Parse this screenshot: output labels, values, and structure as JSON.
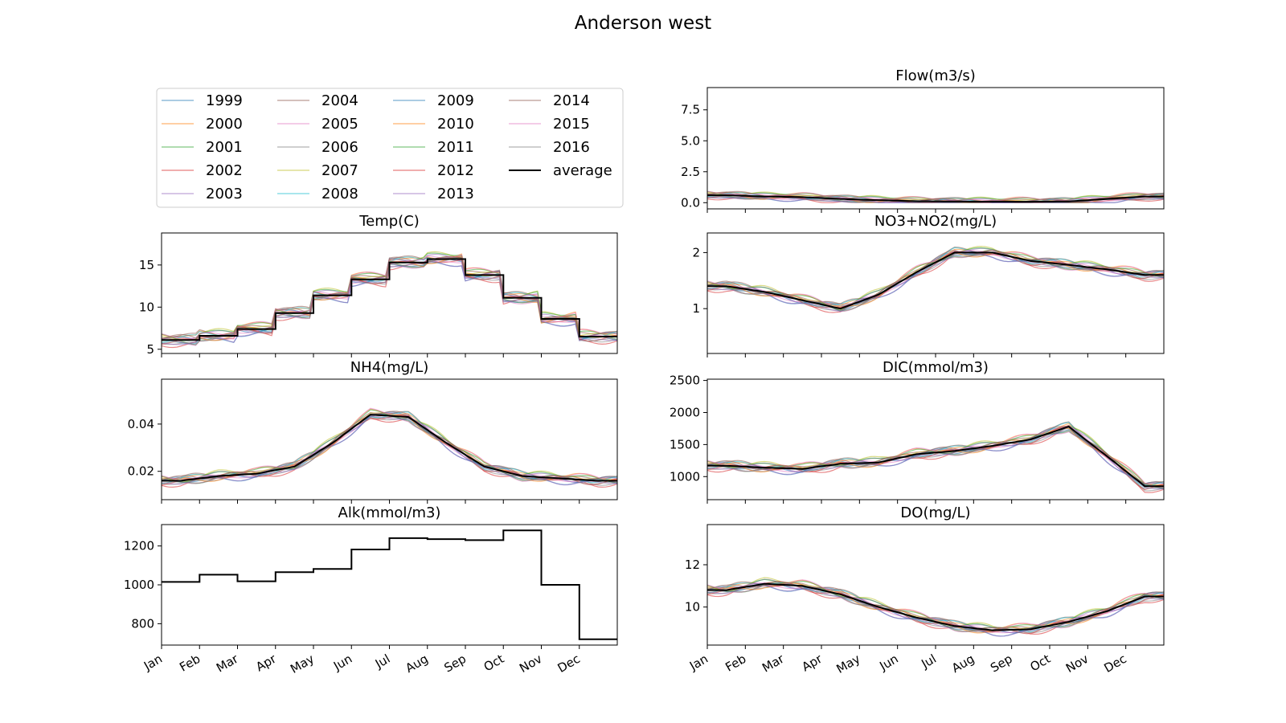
{
  "figure": {
    "title": "Anderson west",
    "legend": {
      "placement": "top-left",
      "entries": [
        "1999",
        "2000",
        "2001",
        "2002",
        "2003",
        "2004",
        "2005",
        "2006",
        "2007",
        "2008",
        "2009",
        "2010",
        "2011",
        "2012",
        "2013",
        "2014",
        "2015",
        "2016",
        "average"
      ]
    },
    "colors": {
      "series": [
        "#1f77b4",
        "#ff7f0e",
        "#2ca02c",
        "#d62728",
        "#9467bd",
        "#8c564b",
        "#e377c2",
        "#7f7f7f",
        "#bcbd22",
        "#17becf"
      ],
      "average": "#000000"
    }
  },
  "chart_data": [
    {
      "type": "line",
      "title": "Temp(C)",
      "categories": [
        "Jan",
        "Feb",
        "Mar",
        "Apr",
        "May",
        "Jun",
        "Jul",
        "Aug",
        "Sep",
        "Oct",
        "Nov",
        "Dec"
      ],
      "yticks": [
        5,
        10,
        15
      ],
      "ylim": [
        4.5,
        18.8
      ],
      "show_xticklabels": false,
      "average": [
        6.1,
        6.6,
        7.4,
        9.3,
        11.4,
        13.3,
        15.3,
        15.7,
        13.8,
        11.1,
        8.6,
        6.5
      ]
    },
    {
      "type": "line",
      "title": "NH4(mg/L)",
      "categories": [
        "Jan",
        "Feb",
        "Mar",
        "Apr",
        "May",
        "Jun",
        "Jul",
        "Aug",
        "Sep",
        "Oct",
        "Nov",
        "Dec"
      ],
      "yticks": [
        0.02,
        0.04
      ],
      "ylim": [
        0.008,
        0.059
      ],
      "show_xticklabels": false,
      "average": [
        0.016,
        0.018,
        0.019,
        0.022,
        0.032,
        0.044,
        0.043,
        0.032,
        0.022,
        0.018,
        0.017,
        0.016
      ]
    },
    {
      "type": "line",
      "title": "Alk(mmol/m3)",
      "categories": [
        "Jan",
        "Feb",
        "Mar",
        "Apr",
        "May",
        "Jun",
        "Jul",
        "Aug",
        "Sep",
        "Oct",
        "Nov",
        "Dec"
      ],
      "yticks": [
        800,
        1000,
        1200
      ],
      "ylim": [
        690,
        1310
      ],
      "show_xticklabels": true,
      "average": [
        1015,
        1052,
        1018,
        1065,
        1082,
        1182,
        1240,
        1235,
        1230,
        1280,
        1000,
        720
      ]
    },
    {
      "type": "line",
      "title": "Flow(m3/s)",
      "categories": [
        "Jan",
        "Feb",
        "Mar",
        "Apr",
        "May",
        "Jun",
        "Jul",
        "Aug",
        "Sep",
        "Oct",
        "Nov",
        "Dec"
      ],
      "yticks": [
        0.0,
        2.5,
        5.0,
        7.5
      ],
      "ytick_labels": [
        "0.0",
        "2.5",
        "5.0",
        "7.5"
      ],
      "ylim": [
        -0.5,
        9.3
      ],
      "show_xticklabels": false,
      "average": [
        0.6,
        0.5,
        0.45,
        0.3,
        0.2,
        0.12,
        0.1,
        0.08,
        0.08,
        0.1,
        0.3,
        0.5
      ]
    },
    {
      "type": "line",
      "title": "NO3+NO2(mg/L)",
      "categories": [
        "Jan",
        "Feb",
        "Mar",
        "Apr",
        "May",
        "Jun",
        "Jul",
        "Aug",
        "Sep",
        "Oct",
        "Nov",
        "Dec"
      ],
      "yticks": [
        1,
        2
      ],
      "ylim": [
        0.2,
        2.35
      ],
      "show_xticklabels": false,
      "average": [
        1.4,
        1.3,
        1.15,
        1.0,
        1.25,
        1.65,
        2.0,
        2.0,
        1.85,
        1.78,
        1.7,
        1.6
      ]
    },
    {
      "type": "line",
      "title": "DIC(mmol/m3)",
      "categories": [
        "Jan",
        "Feb",
        "Mar",
        "Apr",
        "May",
        "Jun",
        "Jul",
        "Aug",
        "Sep",
        "Oct",
        "Nov",
        "Dec"
      ],
      "yticks": [
        1000,
        1500,
        2000,
        2500
      ],
      "ylim": [
        640,
        2520
      ],
      "show_xticklabels": false,
      "average": [
        1170,
        1140,
        1120,
        1200,
        1220,
        1350,
        1400,
        1480,
        1580,
        1780,
        1320,
        850
      ]
    },
    {
      "type": "line",
      "title": "DO(mg/L)",
      "categories": [
        "Jan",
        "Feb",
        "Mar",
        "Apr",
        "May",
        "Jun",
        "Jul",
        "Aug",
        "Sep",
        "Oct",
        "Nov",
        "Dec"
      ],
      "yticks": [
        10,
        12
      ],
      "ylim": [
        8.2,
        13.9
      ],
      "show_xticklabels": true,
      "average": [
        10.8,
        11.1,
        11.0,
        10.6,
        10.0,
        9.5,
        9.1,
        8.9,
        8.95,
        9.3,
        9.8,
        10.5
      ]
    }
  ]
}
